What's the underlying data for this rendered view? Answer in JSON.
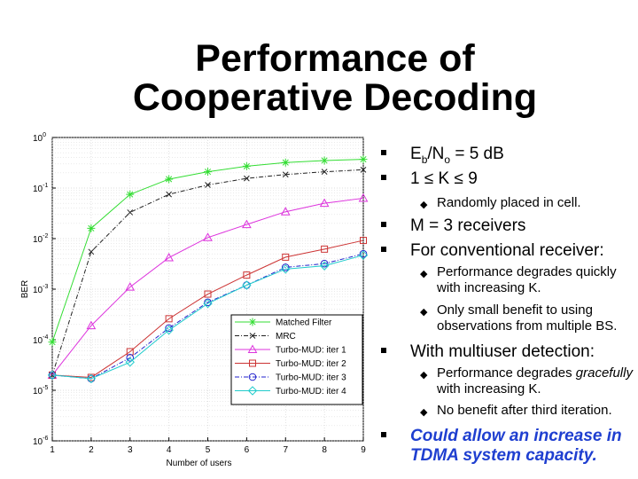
{
  "slide": {
    "title_line1": "Performance of",
    "title_line2": "Cooperative Decoding"
  },
  "bullets": {
    "b1_lead": "E",
    "b1_sub1": "b",
    "b1_mid": "/N",
    "b1_sub2": "o",
    "b1_tail": " = 5 dB",
    "b2": "1 ≤ K ≤ 9",
    "b2_sub": "Randomly placed in cell.",
    "b3": "M = 3 receivers",
    "b4": "For conventional receiver:",
    "b4_sub1": "Performance degrades quickly with increasing K.",
    "b4_sub2": "Only small benefit to using observations from multiple BS.",
    "b5": "With multiuser detection:",
    "b5_sub1_italic": "gracefully",
    "b5_sub1_pre": "Performance degrades ",
    "b5_sub1_post": " with increasing K.",
    "b5_sub2": "No benefit after third iteration.",
    "b6": "Could allow an increase in TDMA system capacity."
  },
  "chart_data": {
    "type": "line",
    "xlabel": "Number of users",
    "ylabel": "BER",
    "x": [
      1,
      2,
      3,
      4,
      5,
      6,
      7,
      8,
      9
    ],
    "xlim": [
      1,
      9
    ],
    "ylim": [
      1e-06,
      1
    ],
    "yscale": "log",
    "ytick_labels": [
      "10^0",
      "10^-1",
      "10^-2",
      "10^-3",
      "10^-4",
      "10^-5",
      "10^-6"
    ],
    "grid": true,
    "legend_position": "bottom-right",
    "series": [
      {
        "name": "Matched Filter",
        "color": "#33dd33",
        "marker": "star",
        "dash": "solid",
        "values": [
          9e-05,
          0.016,
          0.075,
          0.15,
          0.21,
          0.27,
          0.32,
          0.35,
          0.37
        ]
      },
      {
        "name": "MRC",
        "color": "#222222",
        "marker": "x",
        "dash": "dashdot",
        "values": [
          2e-05,
          0.0055,
          0.033,
          0.075,
          0.115,
          0.155,
          0.185,
          0.21,
          0.23
        ]
      },
      {
        "name": "Turbo-MUD: iter 1",
        "color": "#dd33dd",
        "marker": "triangle",
        "dash": "solid",
        "values": [
          2e-05,
          0.00019,
          0.0011,
          0.0042,
          0.0105,
          0.019,
          0.034,
          0.05,
          0.063
        ]
      },
      {
        "name": "Turbo-MUD: iter 2",
        "color": "#cc3333",
        "marker": "square",
        "dash": "solid",
        "values": [
          2e-05,
          1.8e-05,
          5.8e-05,
          0.00026,
          0.0008,
          0.0019,
          0.0043,
          0.0062,
          0.0092
        ]
      },
      {
        "name": "Turbo-MUD: iter 3",
        "color": "#2222cc",
        "marker": "circle",
        "dash": "dashdot",
        "values": [
          2e-05,
          1.7e-05,
          4.4e-05,
          0.00017,
          0.00055,
          0.0012,
          0.0027,
          0.0032,
          0.005
        ]
      },
      {
        "name": "Turbo-MUD: iter 4",
        "color": "#22cccc",
        "marker": "diamond",
        "dash": "solid",
        "values": [
          2e-05,
          1.7e-05,
          3.6e-05,
          0.000155,
          0.00052,
          0.0012,
          0.0025,
          0.0029,
          0.0047
        ]
      }
    ]
  }
}
